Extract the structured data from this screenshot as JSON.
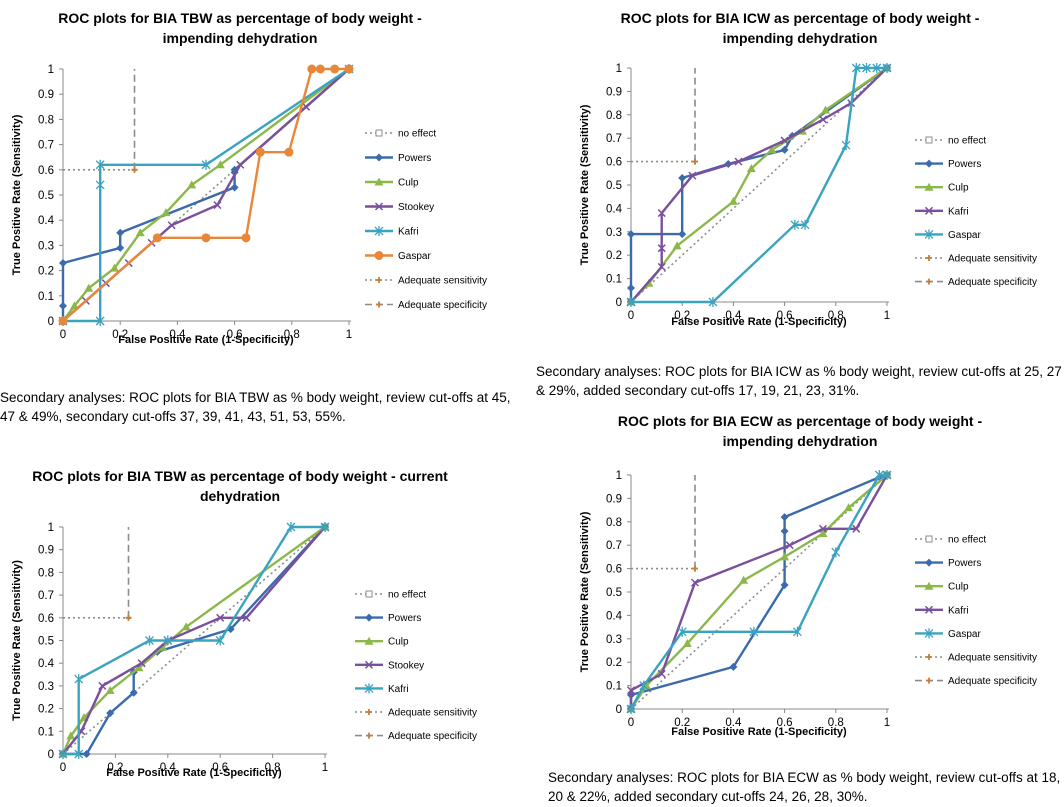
{
  "captions": {
    "a": "Secondary analyses: ROC plots for BIA TBW as % body weight, review cut-offs at 45, 47 & 49%, secondary cut-offs 37, 39, 41, 43, 51, 53, 55%.",
    "b": "Secondary analyses: ROC plots for BIA ICW as % body weight, review cut-offs at 25, 27 & 29%, added secondary cut-offs 17, 19, 21, 23, 31%.",
    "c": "Secondary analyses: ROC plots for BIA ECW as % body weight, review cut-offs at 18, 20 & 22%, added secondary cut-offs 24, 26, 28, 30%."
  },
  "colors": {
    "no_effect": "#8c8c8c",
    "Powers": "#3b6bad",
    "Culp": "#8cb84a",
    "Stookey": "#7a4f9c",
    "Kafri_tbw": "#3aa3bf",
    "Kafri_icw": "#7a4f9c",
    "Gaspar_tbw": "#e8873a",
    "Gaspar_icw": "#3aa3bf",
    "adequate": "#8c8c8c",
    "adequate_marker": "#c0803f"
  },
  "chart_data": [
    {
      "id": "tbw_impending",
      "type": "line",
      "title": "ROC plots for BIA TBW as percentage of body weight - impending dehydration",
      "xlabel": "False Positive Rate (1-Specificity)",
      "ylabel": "True Positive Rate (Sensitivity)",
      "xlim": [
        0,
        1
      ],
      "ylim": [
        0,
        1
      ],
      "xticks": [
        "0",
        "0.2",
        "0.4",
        "0.6",
        "0.8",
        "1"
      ],
      "yticks": [
        "0",
        "0.1",
        "0.2",
        "0.3",
        "0.4",
        "0.5",
        "0.6",
        "0.7",
        "0.8",
        "0.9",
        "1"
      ],
      "legend_position": "right",
      "series": [
        {
          "name": "no effect",
          "style": "dotted",
          "marker": "square",
          "points": [
            [
              0,
              0
            ],
            [
              1,
              1
            ]
          ]
        },
        {
          "name": "Powers",
          "marker": "diamond",
          "points": [
            [
              0,
              0
            ],
            [
              0,
              0.06
            ],
            [
              0,
              0.23
            ],
            [
              0.2,
              0.29
            ],
            [
              0.2,
              0.35
            ],
            [
              0.6,
              0.53
            ],
            [
              0.6,
              0.59
            ],
            [
              0.6,
              0.6
            ],
            [
              1,
              1
            ]
          ]
        },
        {
          "name": "Culp",
          "marker": "triangle",
          "points": [
            [
              0,
              0
            ],
            [
              0.04,
              0.06
            ],
            [
              0.09,
              0.13
            ],
            [
              0.18,
              0.21
            ],
            [
              0.27,
              0.35
            ],
            [
              0.36,
              0.43
            ],
            [
              0.45,
              0.54
            ],
            [
              0.55,
              0.62
            ],
            [
              1,
              1
            ]
          ]
        },
        {
          "name": "Stookey",
          "marker": "x",
          "points": [
            [
              0,
              0
            ],
            [
              0.08,
              0.08
            ],
            [
              0.15,
              0.15
            ],
            [
              0.23,
              0.23
            ],
            [
              0.31,
              0.31
            ],
            [
              0.38,
              0.38
            ],
            [
              0.54,
              0.46
            ],
            [
              0.62,
              0.62
            ],
            [
              0.85,
              0.85
            ],
            [
              1,
              1
            ]
          ]
        },
        {
          "name": "Kafri",
          "marker": "asterisk",
          "points": [
            [
              0,
              0
            ],
            [
              0.13,
              0
            ],
            [
              0.13,
              0.54
            ],
            [
              0.13,
              0.62
            ],
            [
              0.5,
              0.62
            ],
            [
              1,
              1
            ]
          ]
        },
        {
          "name": "Gaspar",
          "marker": "circle",
          "points": [
            [
              0,
              0
            ],
            [
              0.33,
              0.33
            ],
            [
              0.5,
              0.33
            ],
            [
              0.64,
              0.33
            ],
            [
              0.69,
              0.67
            ],
            [
              0.79,
              0.67
            ],
            [
              0.87,
              1
            ],
            [
              0.9,
              1
            ],
            [
              0.95,
              1
            ],
            [
              1,
              1
            ]
          ]
        },
        {
          "name": "Adequate sensitivity",
          "style": "dotted",
          "marker": "plus",
          "points": [
            [
              0,
              0.6
            ],
            [
              0.25,
              0.6
            ]
          ]
        },
        {
          "name": "Adequate specificity",
          "style": "dashed",
          "marker": "plus",
          "points": [
            [
              0.25,
              0.6
            ],
            [
              0.25,
              1
            ]
          ]
        }
      ]
    },
    {
      "id": "icw_impending",
      "type": "line",
      "title": "ROC plots for BIA ICW as percentage of body weight - impending dehydration",
      "xlabel": "False Positive Rate (1-Specificity)",
      "ylabel": "True Positive Rate (Sensitivity)",
      "xlim": [
        0,
        1
      ],
      "ylim": [
        0,
        1
      ],
      "xticks": [
        "0",
        "0.2",
        "0.4",
        "0.6",
        "0.8",
        "1"
      ],
      "yticks": [
        "0",
        "0.1",
        "0.2",
        "0.3",
        "0.4",
        "0.5",
        "0.6",
        "0.7",
        "0.8",
        "0.9",
        "1"
      ],
      "legend_position": "right",
      "series": [
        {
          "name": "no effect",
          "style": "dotted",
          "marker": "square",
          "points": [
            [
              0,
              0
            ],
            [
              1,
              1
            ]
          ]
        },
        {
          "name": "Powers",
          "marker": "diamond",
          "points": [
            [
              0,
              0
            ],
            [
              0,
              0.06
            ],
            [
              0,
              0.29
            ],
            [
              0.2,
              0.29
            ],
            [
              0.2,
              0.53
            ],
            [
              0.38,
              0.59
            ],
            [
              0.6,
              0.65
            ],
            [
              0.63,
              0.71
            ],
            [
              1,
              1
            ]
          ]
        },
        {
          "name": "Culp",
          "marker": "triangle",
          "points": [
            [
              0,
              0
            ],
            [
              0.07,
              0.08
            ],
            [
              0.18,
              0.24
            ],
            [
              0.4,
              0.43
            ],
            [
              0.47,
              0.57
            ],
            [
              0.55,
              0.65
            ],
            [
              0.67,
              0.73
            ],
            [
              0.76,
              0.82
            ],
            [
              1,
              1
            ]
          ]
        },
        {
          "name": "Kafri",
          "marker": "x",
          "points": [
            [
              0,
              0
            ],
            [
              0.12,
              0.15
            ],
            [
              0.12,
              0.23
            ],
            [
              0.12,
              0.38
            ],
            [
              0.24,
              0.54
            ],
            [
              0.42,
              0.6
            ],
            [
              0.6,
              0.69
            ],
            [
              0.75,
              0.78
            ],
            [
              0.86,
              0.85
            ],
            [
              1,
              1
            ]
          ]
        },
        {
          "name": "Gaspar",
          "marker": "asterisk",
          "points": [
            [
              0,
              0
            ],
            [
              0.32,
              0
            ],
            [
              0.64,
              0.33
            ],
            [
              0.68,
              0.33
            ],
            [
              0.84,
              0.67
            ],
            [
              0.88,
              1
            ],
            [
              0.92,
              1
            ],
            [
              0.96,
              1
            ],
            [
              1,
              1
            ]
          ]
        },
        {
          "name": "Adequate sensitivity",
          "style": "dotted",
          "marker": "plus",
          "points": [
            [
              0,
              0.6
            ],
            [
              0.25,
              0.6
            ]
          ]
        },
        {
          "name": "Adequate specificity",
          "style": "dashed",
          "marker": "plus",
          "points": [
            [
              0.25,
              0.6
            ],
            [
              0.25,
              1
            ]
          ]
        }
      ]
    },
    {
      "id": "tbw_current",
      "type": "line",
      "title": "ROC plots for BIA TBW as percentage of body weight - current dehydration",
      "xlabel": "False Positive Rate (1-Specificity)",
      "ylabel": "True Positive Rate (Sensitivity)",
      "xlim": [
        0,
        1
      ],
      "ylim": [
        0,
        1
      ],
      "xticks": [
        "0",
        "0.2",
        "0.4",
        "0.6",
        "0.8",
        "1"
      ],
      "yticks": [
        "0",
        "0.1",
        "0.2",
        "0.3",
        "0.4",
        "0.5",
        "0.6",
        "0.7",
        "0.8",
        "0.9",
        "1"
      ],
      "legend_position": "right",
      "series": [
        {
          "name": "no effect",
          "style": "dotted",
          "marker": "square",
          "points": [
            [
              0,
              0
            ],
            [
              1,
              1
            ]
          ]
        },
        {
          "name": "Powers",
          "marker": "diamond",
          "points": [
            [
              0,
              0
            ],
            [
              0.09,
              0
            ],
            [
              0.18,
              0.18
            ],
            [
              0.27,
              0.27
            ],
            [
              0.27,
              0.36
            ],
            [
              0.36,
              0.45
            ],
            [
              0.64,
              0.55
            ],
            [
              1,
              1
            ]
          ]
        },
        {
          "name": "Culp",
          "marker": "triangle",
          "points": [
            [
              0,
              0
            ],
            [
              0.03,
              0.08
            ],
            [
              0.08,
              0.16
            ],
            [
              0.18,
              0.28
            ],
            [
              0.29,
              0.38
            ],
            [
              0.38,
              0.47
            ],
            [
              0.47,
              0.56
            ],
            [
              1,
              1
            ]
          ]
        },
        {
          "name": "Stookey",
          "marker": "x",
          "points": [
            [
              0,
              0
            ],
            [
              0.07,
              0.1
            ],
            [
              0.15,
              0.3
            ],
            [
              0.3,
              0.4
            ],
            [
              0.4,
              0.5
            ],
            [
              0.6,
              0.6
            ],
            [
              0.7,
              0.6
            ],
            [
              1,
              1
            ]
          ]
        },
        {
          "name": "Kafri",
          "marker": "asterisk",
          "points": [
            [
              0,
              0
            ],
            [
              0.06,
              0
            ],
            [
              0.06,
              0.33
            ],
            [
              0.33,
              0.5
            ],
            [
              0.4,
              0.5
            ],
            [
              0.6,
              0.5
            ],
            [
              0.87,
              1
            ],
            [
              1,
              1
            ]
          ]
        },
        {
          "name": "Adequate sensitivity",
          "style": "dotted",
          "marker": "plus",
          "points": [
            [
              0,
              0.6
            ],
            [
              0.25,
              0.6
            ]
          ]
        },
        {
          "name": "Adequate specificity",
          "style": "dashed",
          "marker": "plus",
          "points": [
            [
              0.25,
              0.6
            ],
            [
              0.25,
              1
            ]
          ]
        }
      ]
    },
    {
      "id": "ecw_impending",
      "type": "line",
      "title": "ROC plots for BIA ECW as percentage of body weight - impending dehydration",
      "xlabel": "False Positive Rate (1-Specificity)",
      "ylabel": "True Positive Rate (Sensitivity)",
      "xlim": [
        0,
        1
      ],
      "ylim": [
        0,
        1
      ],
      "xticks": [
        "0",
        "0.2",
        "0.4",
        "0.6",
        "0.8",
        "1"
      ],
      "yticks": [
        "0",
        "0.1",
        "0.2",
        "0.3",
        "0.4",
        "0.5",
        "0.6",
        "0.7",
        "0.8",
        "0.9",
        "1"
      ],
      "legend_position": "right",
      "series": [
        {
          "name": "no effect",
          "style": "dotted",
          "marker": "square",
          "points": [
            [
              0,
              0
            ],
            [
              1,
              1
            ]
          ]
        },
        {
          "name": "Powers",
          "marker": "diamond",
          "points": [
            [
              0,
              0
            ],
            [
              0,
              0.06
            ],
            [
              0.4,
              0.18
            ],
            [
              0.6,
              0.53
            ],
            [
              0.6,
              0.76
            ],
            [
              0.6,
              0.82
            ],
            [
              0.97,
              0.99
            ],
            [
              1,
              1
            ]
          ]
        },
        {
          "name": "Culp",
          "marker": "triangle",
          "points": [
            [
              0,
              0
            ],
            [
              0.06,
              0.1
            ],
            [
              0.22,
              0.28
            ],
            [
              0.44,
              0.55
            ],
            [
              0.6,
              0.65
            ],
            [
              0.75,
              0.75
            ],
            [
              0.85,
              0.86
            ],
            [
              1,
              1
            ]
          ]
        },
        {
          "name": "Kafri",
          "marker": "x",
          "points": [
            [
              0,
              0
            ],
            [
              0,
              0.08
            ],
            [
              0.12,
              0.15
            ],
            [
              0.25,
              0.54
            ],
            [
              0.62,
              0.7
            ],
            [
              0.75,
              0.77
            ],
            [
              0.88,
              0.77
            ],
            [
              1,
              1
            ]
          ]
        },
        {
          "name": "Gaspar",
          "marker": "asterisk",
          "points": [
            [
              0,
              0
            ],
            [
              0.05,
              0.1
            ],
            [
              0.2,
              0.33
            ],
            [
              0.48,
              0.33
            ],
            [
              0.65,
              0.33
            ],
            [
              0.8,
              0.67
            ],
            [
              0.97,
              1
            ],
            [
              1,
              1
            ]
          ]
        },
        {
          "name": "Adequate sensitivity",
          "style": "dotted",
          "marker": "plus",
          "points": [
            [
              0,
              0.6
            ],
            [
              0.25,
              0.6
            ]
          ]
        },
        {
          "name": "Adequate specificity",
          "style": "dashed",
          "marker": "plus",
          "points": [
            [
              0.25,
              0.6
            ],
            [
              0.25,
              1
            ]
          ]
        }
      ]
    }
  ]
}
